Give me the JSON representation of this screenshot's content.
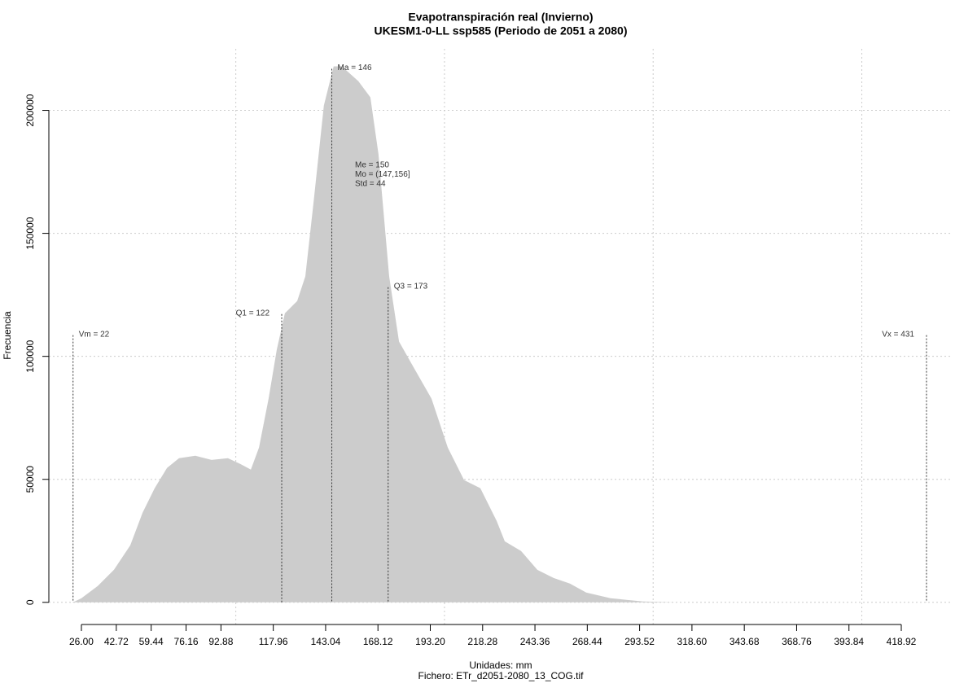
{
  "chart_data": {
    "type": "area",
    "title": "Evapotranspiración real (Invierno)",
    "subtitle": "UKESM1-0-LL ssp585 (Periodo de 2051 a 2080)",
    "xlabel": "Unidades: mm",
    "caption": "Fichero: ETr_d2051-2080_13_COG.tif",
    "ylabel": "Frecuencia",
    "color": "#cccccc",
    "x": [
      22,
      26,
      33.8,
      41.6,
      49.4,
      55.3,
      61.1,
      67.0,
      72.8,
      80.6,
      88.4,
      96.2,
      102.1,
      107.2,
      111.1,
      115.7,
      119.6,
      123.5,
      129.4,
      133.3,
      137.2,
      142.2,
      146.9,
      150.8,
      158.7,
      164.5,
      168.4,
      173.5,
      178.2,
      186.0,
      193.8,
      201.6,
      209.4,
      217.2,
      225.0,
      228.9,
      236.7,
      244.5,
      252.3,
      260.1,
      267.9,
      279.6,
      295.2,
      310.8,
      427.9
    ],
    "values": [
      0,
      1656,
      6620,
      13250,
      23200,
      36400,
      46360,
      54600,
      58600,
      59600,
      57900,
      58600,
      56300,
      54000,
      62900,
      82800,
      102600,
      117500,
      122500,
      132500,
      162200,
      202000,
      217900,
      217900,
      211900,
      205300,
      182100,
      132500,
      106000,
      94400,
      82800,
      62900,
      49700,
      46400,
      33100,
      24800,
      20900,
      13200,
      9900,
      7600,
      4000,
      1700,
      330,
      0,
      0
    ],
    "xlim": [
      10.4,
      443.5
    ],
    "ylim": [
      -9000,
      225000
    ],
    "xticks": [
      {
        "value": 26,
        "label": "26.00"
      },
      42.72,
      59.44,
      76.16,
      92.88,
      117.96,
      143.04,
      168.12,
      {
        "value": 193.2,
        "label": "193.20"
      },
      218.28,
      243.36,
      268.44,
      293.52,
      {
        "value": 318.6,
        "label": "318.60"
      },
      343.68,
      368.76,
      393.84,
      418.92
    ],
    "yticks": [
      0,
      50000,
      100000,
      150000,
      200000
    ],
    "xgrid": [
      100,
      200,
      300,
      400
    ],
    "grid": true,
    "markers": [
      {
        "label": "Vm = 22",
        "x": 22,
        "y": 108600,
        "side": "right"
      },
      {
        "label": "Q1 = 122",
        "x": 122,
        "y": 117200,
        "side": "left"
      },
      {
        "label": "Ma = 146",
        "x": 146,
        "y": 216900,
        "side": "right"
      },
      {
        "label": "Q3 = 173",
        "x": 173,
        "y": 128100,
        "side": "right"
      },
      {
        "label": "Vx = 431",
        "x": 431,
        "y": 108600,
        "side": "left"
      }
    ],
    "stats": [
      "Me = 150",
      "Mo = (147,156]",
      "Std = 44"
    ]
  }
}
